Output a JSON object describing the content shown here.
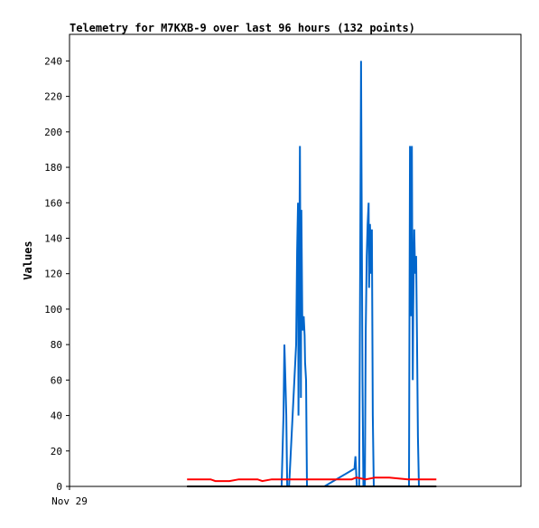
{
  "chart_data": {
    "type": "line",
    "title": "Telemetry for M7KXB-9 over last 96 hours (132 points)",
    "ylabel": "Values",
    "xlabel": "",
    "x_tick_labels": [
      "Nov 29"
    ],
    "ylim": [
      0,
      255
    ],
    "xlim": [
      0,
      96
    ],
    "y_ticks": [
      0,
      20,
      40,
      60,
      80,
      100,
      120,
      140,
      160,
      180,
      200,
      220,
      240
    ],
    "grid": false,
    "legend": "none",
    "series": [
      {
        "color": "#0066cc",
        "x": [
          45.1,
          45.5,
          45.7,
          45.9,
          46.1,
          46.3,
          46.5,
          46.7,
          48.2,
          48.4,
          48.6,
          48.7,
          48.9,
          49.0,
          49.2,
          49.3,
          49.5,
          49.6,
          49.8,
          50.0,
          50.1,
          50.3,
          50.5,
          54.2,
          60.6,
          60.8,
          61.1,
          61.4,
          61.6,
          61.8,
          62.0,
          62.1,
          62.3,
          62.5,
          62.8,
          63.0,
          63.2,
          63.4,
          63.6,
          63.7,
          63.9,
          64.1,
          64.3,
          64.5,
          64.7,
          64.9,
          65.1,
          65.3,
          65.6,
          66.0,
          66.3,
          66.6,
          66.9,
          67.3,
          72.2,
          72.4,
          72.6,
          72.8,
          73.0,
          73.1,
          73.3,
          73.5,
          73.7,
          73.9,
          74.1,
          74.3,
          74.5,
          74.7,
          75.0,
          75.2,
          75.4
        ],
        "y": [
          0,
          40,
          80,
          60,
          40,
          0,
          0,
          0,
          80,
          133,
          160,
          40,
          145,
          192,
          50,
          156,
          96,
          88,
          96,
          85,
          70,
          60,
          0,
          0,
          10,
          17,
          0,
          0,
          0,
          120,
          240,
          180,
          60,
          0,
          0,
          88,
          130,
          148,
          160,
          112,
          148,
          120,
          145,
          40,
          0,
          0,
          0,
          0,
          0,
          0,
          0,
          0,
          0,
          0,
          0,
          192,
          96,
          192,
          60,
          100,
          145,
          120,
          130,
          82,
          28,
          0,
          0,
          0,
          0,
          0,
          0
        ]
      },
      {
        "color": "#ff0000",
        "x": [
          25,
          30,
          31,
          34,
          36,
          40,
          41,
          43,
          44,
          50,
          60,
          61,
          63,
          65,
          68,
          72,
          75,
          78
        ],
        "y": [
          4,
          4,
          3,
          3,
          4,
          4,
          3,
          4,
          4,
          4,
          4,
          5,
          4,
          5,
          5,
          4,
          4,
          4
        ]
      },
      {
        "color": "#000000",
        "x": [
          25,
          78
        ],
        "y": [
          0,
          0
        ]
      }
    ]
  }
}
